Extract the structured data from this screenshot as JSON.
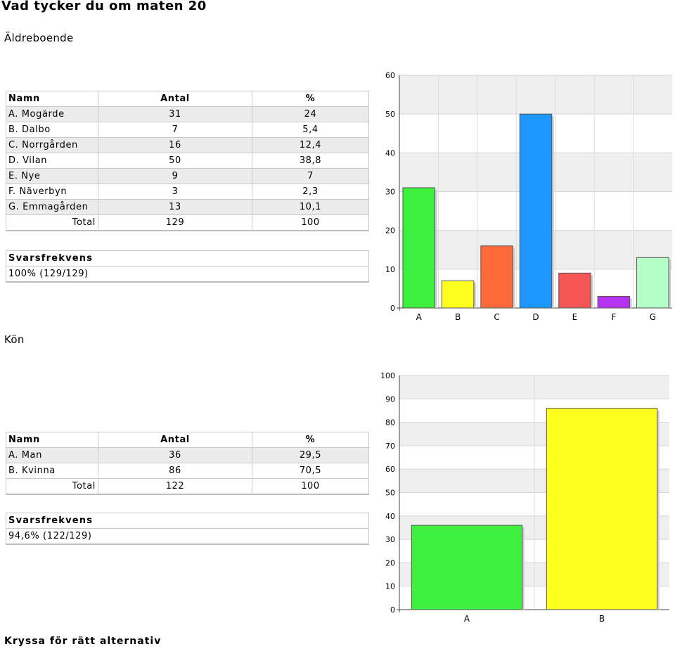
{
  "title": "Vad tycker du om maten 20",
  "footer_heading": "Kryssa för rätt alternativ",
  "sections": [
    {
      "heading": "Äldreboende",
      "headers": [
        "Namn",
        "Antal",
        "%"
      ],
      "rows": [
        [
          "A. Mogärde",
          "31",
          "24"
        ],
        [
          "B. Dalbo",
          "7",
          "5,4"
        ],
        [
          "C. Norrgården",
          "16",
          "12,4"
        ],
        [
          "D. Vilan",
          "50",
          "38,8"
        ],
        [
          "E. Nye",
          "9",
          "7"
        ],
        [
          "F. Näverbyn",
          "3",
          "2,3"
        ],
        [
          "G. Emmagården",
          "13",
          "10,1"
        ]
      ],
      "total": [
        "Total",
        "129",
        "100"
      ],
      "freq_label": "Svarsfrekvens",
      "freq_value": "100% (129/129)"
    },
    {
      "heading": "Kön",
      "headers": [
        "Namn",
        "Antal",
        "%"
      ],
      "rows": [
        [
          "A. Man",
          "36",
          "29,5"
        ],
        [
          "B. Kvinna",
          "86",
          "70,5"
        ]
      ],
      "total": [
        "Total",
        "122",
        "100"
      ],
      "freq_label": "Svarsfrekvens",
      "freq_value": "94,6% (122/129)"
    }
  ],
  "chart_data": [
    {
      "type": "bar",
      "categories": [
        "A",
        "B",
        "C",
        "D",
        "E",
        "F",
        "G"
      ],
      "values": [
        31,
        7,
        16,
        50,
        9,
        3,
        13
      ],
      "colors": [
        "#3ef03e",
        "#ffff1e",
        "#ff6a3a",
        "#1e96ff",
        "#f45555",
        "#b432f0",
        "#b4ffc8"
      ],
      "ylim": [
        0,
        60
      ],
      "yticks": [
        0,
        10,
        20,
        30,
        40,
        50,
        60
      ],
      "grid": true
    },
    {
      "type": "bar",
      "categories": [
        "A",
        "B"
      ],
      "values": [
        36,
        86
      ],
      "colors": [
        "#3ef03e",
        "#ffff1e"
      ],
      "ylim": [
        0,
        100
      ],
      "yticks": [
        0,
        10,
        20,
        30,
        40,
        50,
        60,
        70,
        80,
        90,
        100
      ],
      "grid": true
    }
  ]
}
